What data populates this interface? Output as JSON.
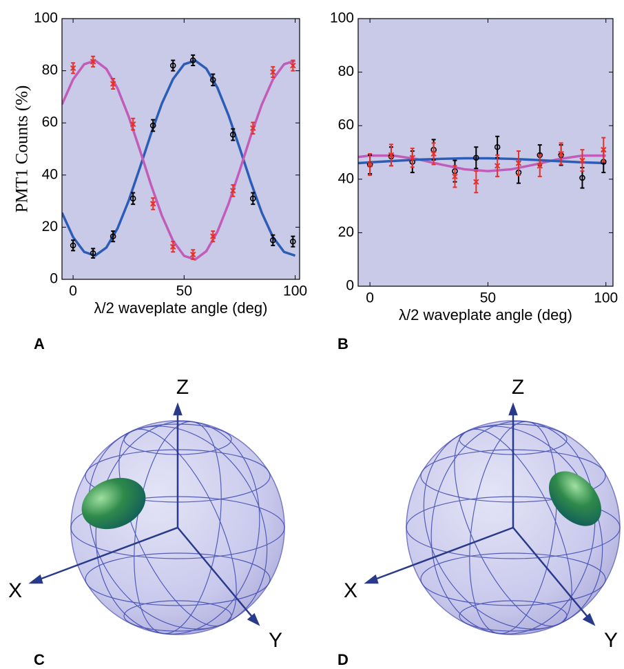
{
  "chart_data": [
    {
      "type": "scatter",
      "y_label": "PMT1 Counts (%)",
      "x_label": "λ/2 waveplate angle (deg)",
      "xlim": [
        -5,
        102
      ],
      "xticks": [
        0,
        50,
        100
      ],
      "ylim": [
        0,
        100
      ],
      "yticks": [
        0,
        20,
        40,
        60,
        80,
        100
      ],
      "background": "#c9c9e8",
      "x": [
        0,
        9,
        18,
        27,
        36,
        45,
        54,
        63,
        72,
        81,
        90,
        99
      ],
      "series": [
        {
          "marker": "line",
          "color": "#2b5cb6",
          "x": [
            -5,
            0,
            5,
            10,
            15,
            20,
            25,
            30,
            35,
            40,
            45,
            50,
            55,
            60,
            65,
            70,
            75,
            80,
            85,
            90,
            95,
            100
          ],
          "values": [
            25.5,
            16.2,
            10.5,
            9.1,
            12.2,
            19.5,
            30.1,
            42.6,
            55.6,
            67.5,
            76.8,
            82.5,
            83.9,
            80.8,
            73.5,
            62.9,
            50.4,
            37.4,
            25.5,
            16.2,
            10.5,
            9.1
          ]
        },
        {
          "marker": "line",
          "color": "#c25cb8",
          "x": [
            -5,
            0,
            5,
            10,
            15,
            20,
            25,
            30,
            35,
            40,
            45,
            50,
            55,
            60,
            65,
            70,
            75,
            80,
            85,
            90,
            95,
            100
          ],
          "values": [
            67.1,
            76.7,
            82.5,
            83.9,
            80.7,
            73.3,
            62.5,
            49.8,
            36.5,
            24.4,
            14.8,
            9.0,
            7.6,
            10.8,
            18.3,
            29.0,
            41.7,
            55.0,
            67.1,
            76.7,
            82.5,
            83.9
          ]
        },
        {
          "marker": "circle",
          "color": "#000000",
          "values": [
            13,
            10,
            16.5,
            31,
            59,
            82,
            84,
            76.5,
            55.5,
            31,
            15,
            14.5
          ],
          "errors": [
            2,
            1.8,
            2,
            2.2,
            2.2,
            2,
            2,
            2.2,
            2.2,
            2.2,
            2,
            2
          ]
        },
        {
          "marker": "x",
          "color": "#e8302a",
          "values": [
            81,
            83.5,
            75,
            59.5,
            29,
            12.5,
            9.5,
            16.5,
            34,
            58,
            79.5,
            82
          ],
          "errors": [
            2,
            2,
            2,
            2.2,
            2.2,
            2,
            1.8,
            2,
            2.2,
            2.2,
            2,
            2
          ]
        }
      ]
    },
    {
      "type": "scatter",
      "x_label": "λ/2 waveplate angle (deg)",
      "xlim": [
        -5,
        103
      ],
      "xticks": [
        0,
        50,
        100
      ],
      "ylim": [
        0,
        100
      ],
      "yticks": [
        0,
        20,
        40,
        60,
        80,
        100
      ],
      "background": "#c9c9e8",
      "x": [
        0,
        9,
        18,
        27,
        36,
        45,
        54,
        63,
        72,
        81,
        90,
        99
      ],
      "series": [
        {
          "marker": "line",
          "color": "#c25cb8",
          "x": [
            -5,
            0,
            10,
            20,
            30,
            40,
            50,
            60,
            70,
            80,
            90,
            100
          ],
          "values": [
            48.3,
            48.8,
            48.8,
            47.5,
            45.5,
            43.7,
            43,
            43.7,
            45.5,
            47.5,
            48.8,
            48.8
          ]
        },
        {
          "marker": "line",
          "color": "#2b5cb6",
          "x": [
            -5,
            0,
            10,
            20,
            30,
            40,
            50,
            60,
            70,
            80,
            90,
            100
          ],
          "values": [
            46,
            46.3,
            46.8,
            47.3,
            47.6,
            47.8,
            47.8,
            47.6,
            47.2,
            46.7,
            46.3,
            46
          ]
        },
        {
          "marker": "circle",
          "color": "#000000",
          "values": [
            45.5,
            48.5,
            46.5,
            51,
            43,
            48,
            52,
            42.5,
            49,
            49,
            40.5,
            46.5
          ],
          "errors": [
            3.5,
            3.5,
            4,
            3.8,
            4,
            4,
            4,
            4,
            3.8,
            3.8,
            3.8,
            4
          ]
        },
        {
          "marker": "x",
          "color": "#e8302a",
          "values": [
            45.5,
            49,
            48,
            49.5,
            41,
            39,
            45,
            46,
            45,
            49.5,
            47,
            51
          ],
          "errors": [
            4,
            4,
            3.5,
            4,
            4,
            4,
            4,
            4.5,
            4,
            4,
            4,
            4.5
          ]
        }
      ]
    }
  ],
  "panels": [
    "A",
    "B",
    "C",
    "D"
  ],
  "diagrams": [
    {
      "axes": [
        "Z",
        "X",
        "Y"
      ]
    },
    {
      "axes": [
        "Z",
        "X",
        "Y"
      ]
    }
  ]
}
